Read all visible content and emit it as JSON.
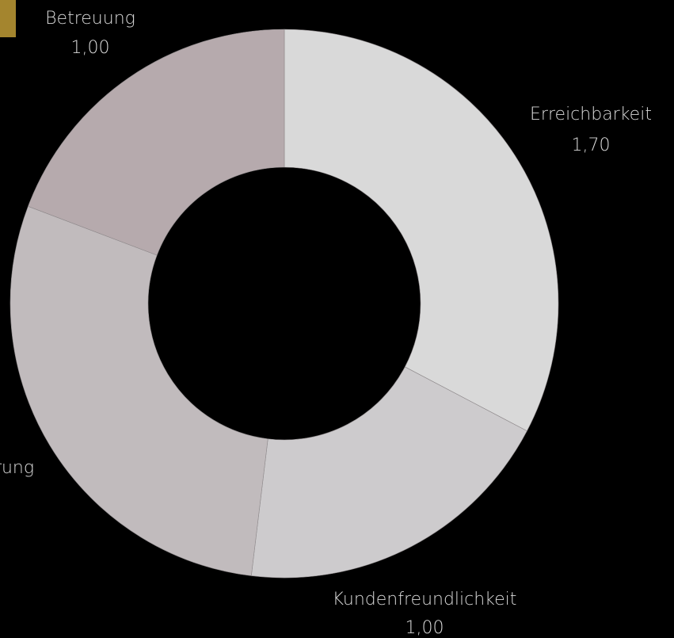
{
  "chart_data": {
    "type": "donut",
    "title": "",
    "slices": [
      {
        "label": "Erreichbarkeit",
        "value": 1.7,
        "value_label": "1,70",
        "color": "#d9d9d9"
      },
      {
        "label": "Kundenfreundlichkeit",
        "value": 1.0,
        "value_label": "1,00",
        "color": "#cdcbcd"
      },
      {
        "label": "rung",
        "value": 1.5,
        "value_label": "",
        "color": "#c1bbbd"
      },
      {
        "label": "Betreuung",
        "value": 1.0,
        "value_label": "1,00",
        "color": "#b6aaad"
      }
    ],
    "start_angle_deg": 0,
    "direction": "clockwise",
    "legend_color": "#a4852e"
  }
}
